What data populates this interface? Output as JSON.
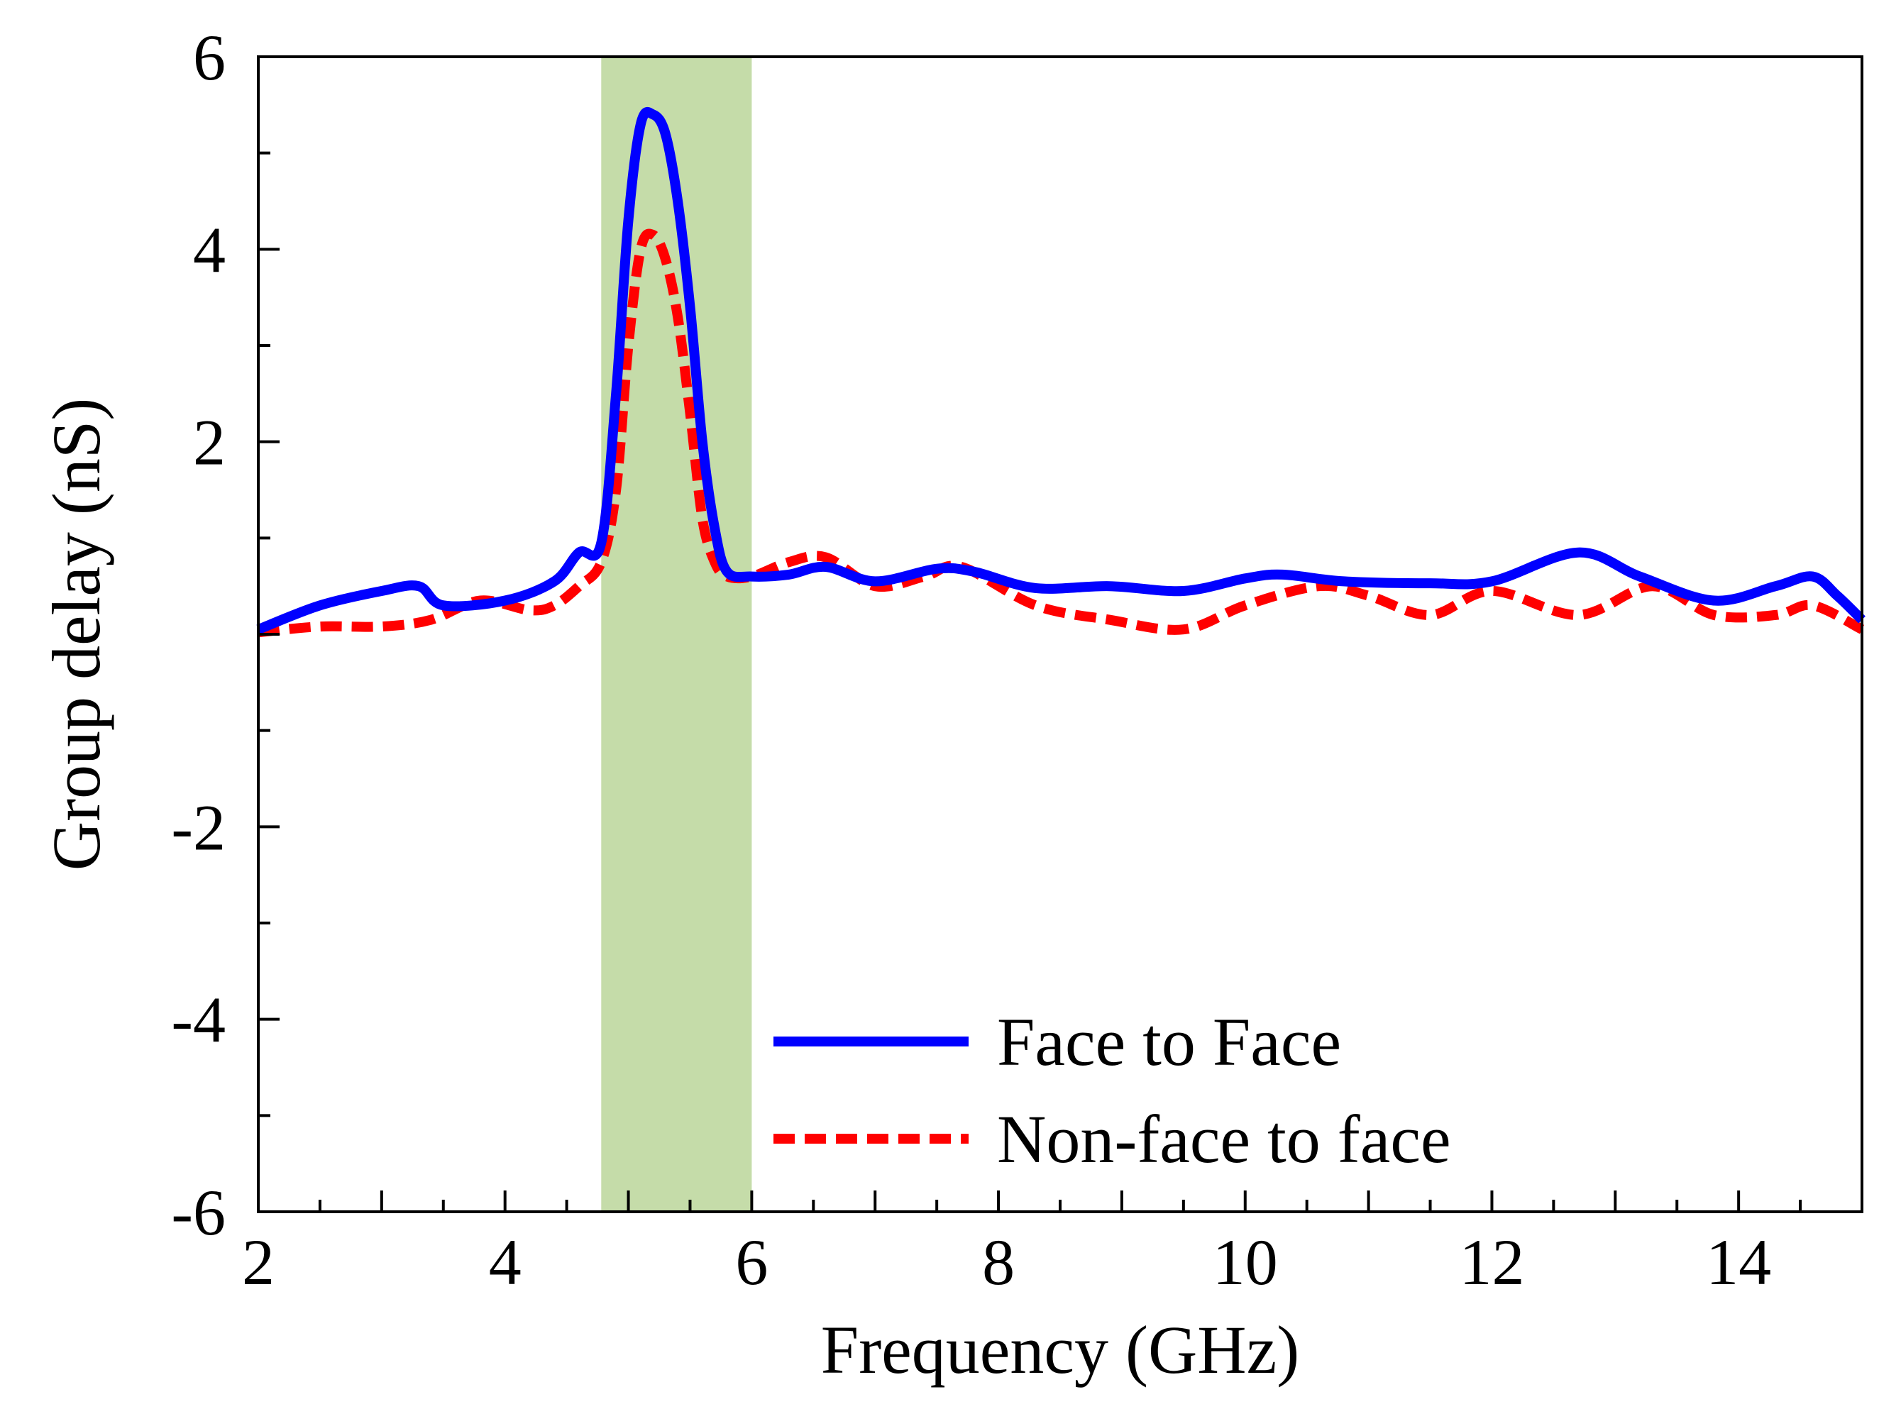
{
  "chart_data": {
    "type": "line",
    "title": "",
    "xlabel": "Frequency (GHz)",
    "ylabel": "Group delay (nS)",
    "xlim": [
      2,
      15
    ],
    "ylim": [
      -6,
      6
    ],
    "x_ticks": [
      2,
      4,
      6,
      8,
      10,
      12,
      14
    ],
    "x_tick_labels": [
      "2",
      "4",
      "6",
      "8",
      "10",
      "12",
      "14"
    ],
    "x_minor_step": 0.5,
    "y_ticks": [
      -6,
      -4,
      -2,
      2,
      4,
      6
    ],
    "y_tick_labels": [
      "-6",
      "-4",
      "-2",
      "2",
      "4",
      "6"
    ],
    "y_minor_step": 1,
    "highlight_band": {
      "x_start": 4.78,
      "x_end": 6.0,
      "color": "#c5dca9"
    },
    "legend_position": "bottom-right",
    "series": [
      {
        "name": "Face to Face",
        "color": "#0000ff",
        "style": "solid",
        "x": [
          2.0,
          2.5,
          3.0,
          3.3,
          3.5,
          4.0,
          4.4,
          4.6,
          4.78,
          4.9,
          5.0,
          5.1,
          5.2,
          5.3,
          5.4,
          5.5,
          5.6,
          5.7,
          5.8,
          6.0,
          6.3,
          6.6,
          7.0,
          7.5,
          7.8,
          8.3,
          8.9,
          9.5,
          10.0,
          10.3,
          10.8,
          11.5,
          12.0,
          12.7,
          13.2,
          13.8,
          14.3,
          14.6,
          14.8,
          15.0
        ],
        "y": [
          0.05,
          0.3,
          0.45,
          0.5,
          0.3,
          0.35,
          0.55,
          0.85,
          0.95,
          2.5,
          4.3,
          5.3,
          5.4,
          5.2,
          4.5,
          3.4,
          2.0,
          1.1,
          0.65,
          0.6,
          0.62,
          0.7,
          0.55,
          0.68,
          0.65,
          0.48,
          0.5,
          0.45,
          0.58,
          0.62,
          0.55,
          0.53,
          0.55,
          0.85,
          0.6,
          0.35,
          0.5,
          0.6,
          0.4,
          0.15
        ]
      },
      {
        "name": "Non-face to face",
        "color": "#ff0000",
        "style": "dashed",
        "x": [
          2.0,
          2.5,
          3.0,
          3.4,
          3.8,
          4.2,
          4.4,
          4.6,
          4.78,
          4.9,
          5.0,
          5.1,
          5.2,
          5.3,
          5.4,
          5.5,
          5.6,
          5.7,
          5.8,
          6.0,
          6.3,
          6.6,
          7.0,
          7.4,
          7.7,
          8.3,
          8.9,
          9.5,
          10.0,
          10.6,
          11.0,
          11.5,
          12.0,
          12.7,
          13.3,
          13.8,
          14.3,
          14.6,
          15.0
        ],
        "y": [
          0.02,
          0.08,
          0.08,
          0.15,
          0.35,
          0.25,
          0.3,
          0.5,
          0.75,
          1.5,
          3.0,
          4.0,
          4.15,
          3.9,
          3.3,
          2.3,
          1.2,
          0.75,
          0.6,
          0.6,
          0.75,
          0.8,
          0.5,
          0.6,
          0.7,
          0.3,
          0.15,
          0.05,
          0.3,
          0.5,
          0.4,
          0.2,
          0.45,
          0.2,
          0.5,
          0.2,
          0.2,
          0.3,
          0.05
        ]
      }
    ]
  }
}
